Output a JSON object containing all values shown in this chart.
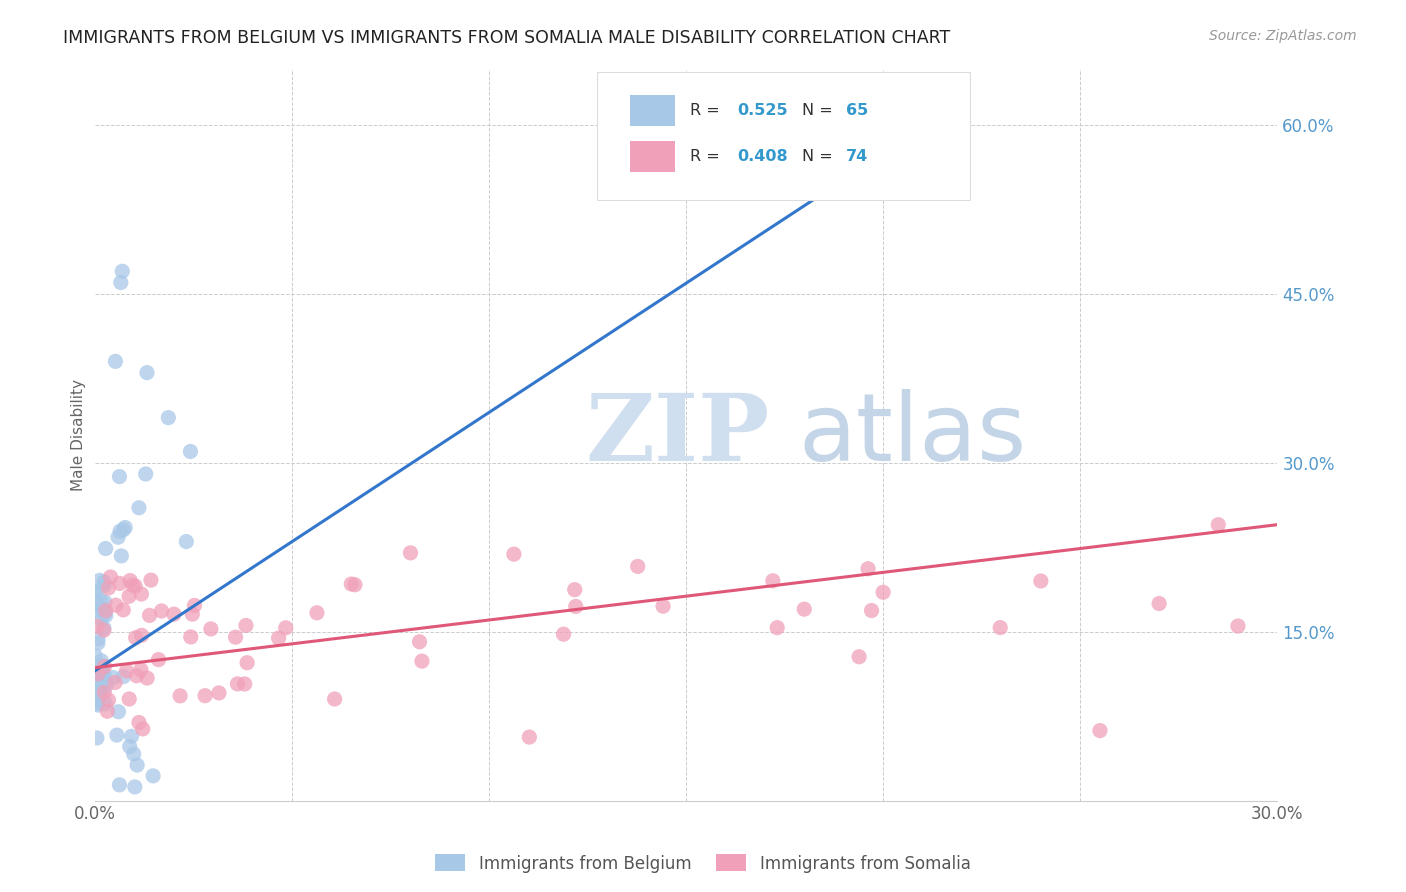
{
  "title": "IMMIGRANTS FROM BELGIUM VS IMMIGRANTS FROM SOMALIA MALE DISABILITY CORRELATION CHART",
  "source": "Source: ZipAtlas.com",
  "ylabel": "Male Disability",
  "xlim": [
    0.0,
    0.3
  ],
  "ylim": [
    0.0,
    0.65
  ],
  "xtick_positions": [
    0.0,
    0.05,
    0.1,
    0.15,
    0.2,
    0.25,
    0.3
  ],
  "xtick_labels": [
    "0.0%",
    "",
    "",
    "",
    "",
    "",
    "30.0%"
  ],
  "ytick_positions": [
    0.15,
    0.3,
    0.45,
    0.6
  ],
  "ytick_labels": [
    "15.0%",
    "30.0%",
    "45.0%",
    "60.0%"
  ],
  "belgium_R": 0.525,
  "belgium_N": 65,
  "somalia_R": 0.408,
  "somalia_N": 74,
  "belgium_color": "#a8c8e8",
  "somalia_color": "#f0a0b8",
  "belgium_line_color": "#3377cc",
  "somalia_line_color": "#e05878",
  "belgium_line_x0": 0.0,
  "belgium_line_y0": 0.115,
  "belgium_line_x1": 0.22,
  "belgium_line_y1": 0.62,
  "somalia_line_x0": 0.0,
  "somalia_line_y0": 0.118,
  "somalia_line_x1": 0.3,
  "somalia_line_y1": 0.245,
  "watermark_zip": "ZIP",
  "watermark_atlas": "atlas",
  "watermark_color": "#d0dff0"
}
